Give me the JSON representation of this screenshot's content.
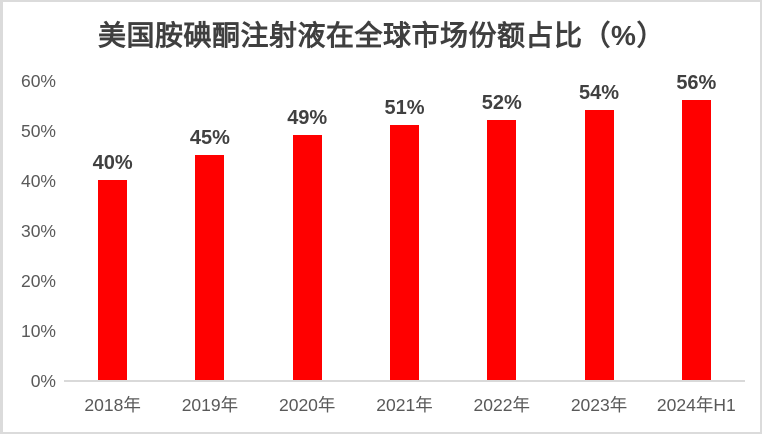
{
  "page": {
    "background": "#FFFFFF",
    "border_color": "#DBDBDB"
  },
  "chart_data": {
    "type": "bar",
    "title": "美国胺碘酮注射液在全球市场份额占比（%）",
    "categories": [
      "2018年",
      "2019年",
      "2020年",
      "2021年",
      "2022年",
      "2023年",
      "2024年H1"
    ],
    "values": [
      40,
      45,
      49,
      51,
      52,
      54,
      56
    ],
    "data_labels": [
      "40%",
      "45%",
      "49%",
      "51%",
      "52%",
      "54%",
      "56%"
    ],
    "y_ticks": [
      "0%",
      "10%",
      "20%",
      "30%",
      "40%",
      "50%",
      "60%"
    ],
    "xlabel": "",
    "ylabel": "",
    "ylim": [
      0,
      60
    ],
    "grid": false,
    "legend": false,
    "colors": {
      "bar": "#FF0000",
      "title_text": "#3F3F3F",
      "data_label_text": "#404040",
      "axis_text": "#595959",
      "axis_line": "#D9D9D9"
    }
  }
}
